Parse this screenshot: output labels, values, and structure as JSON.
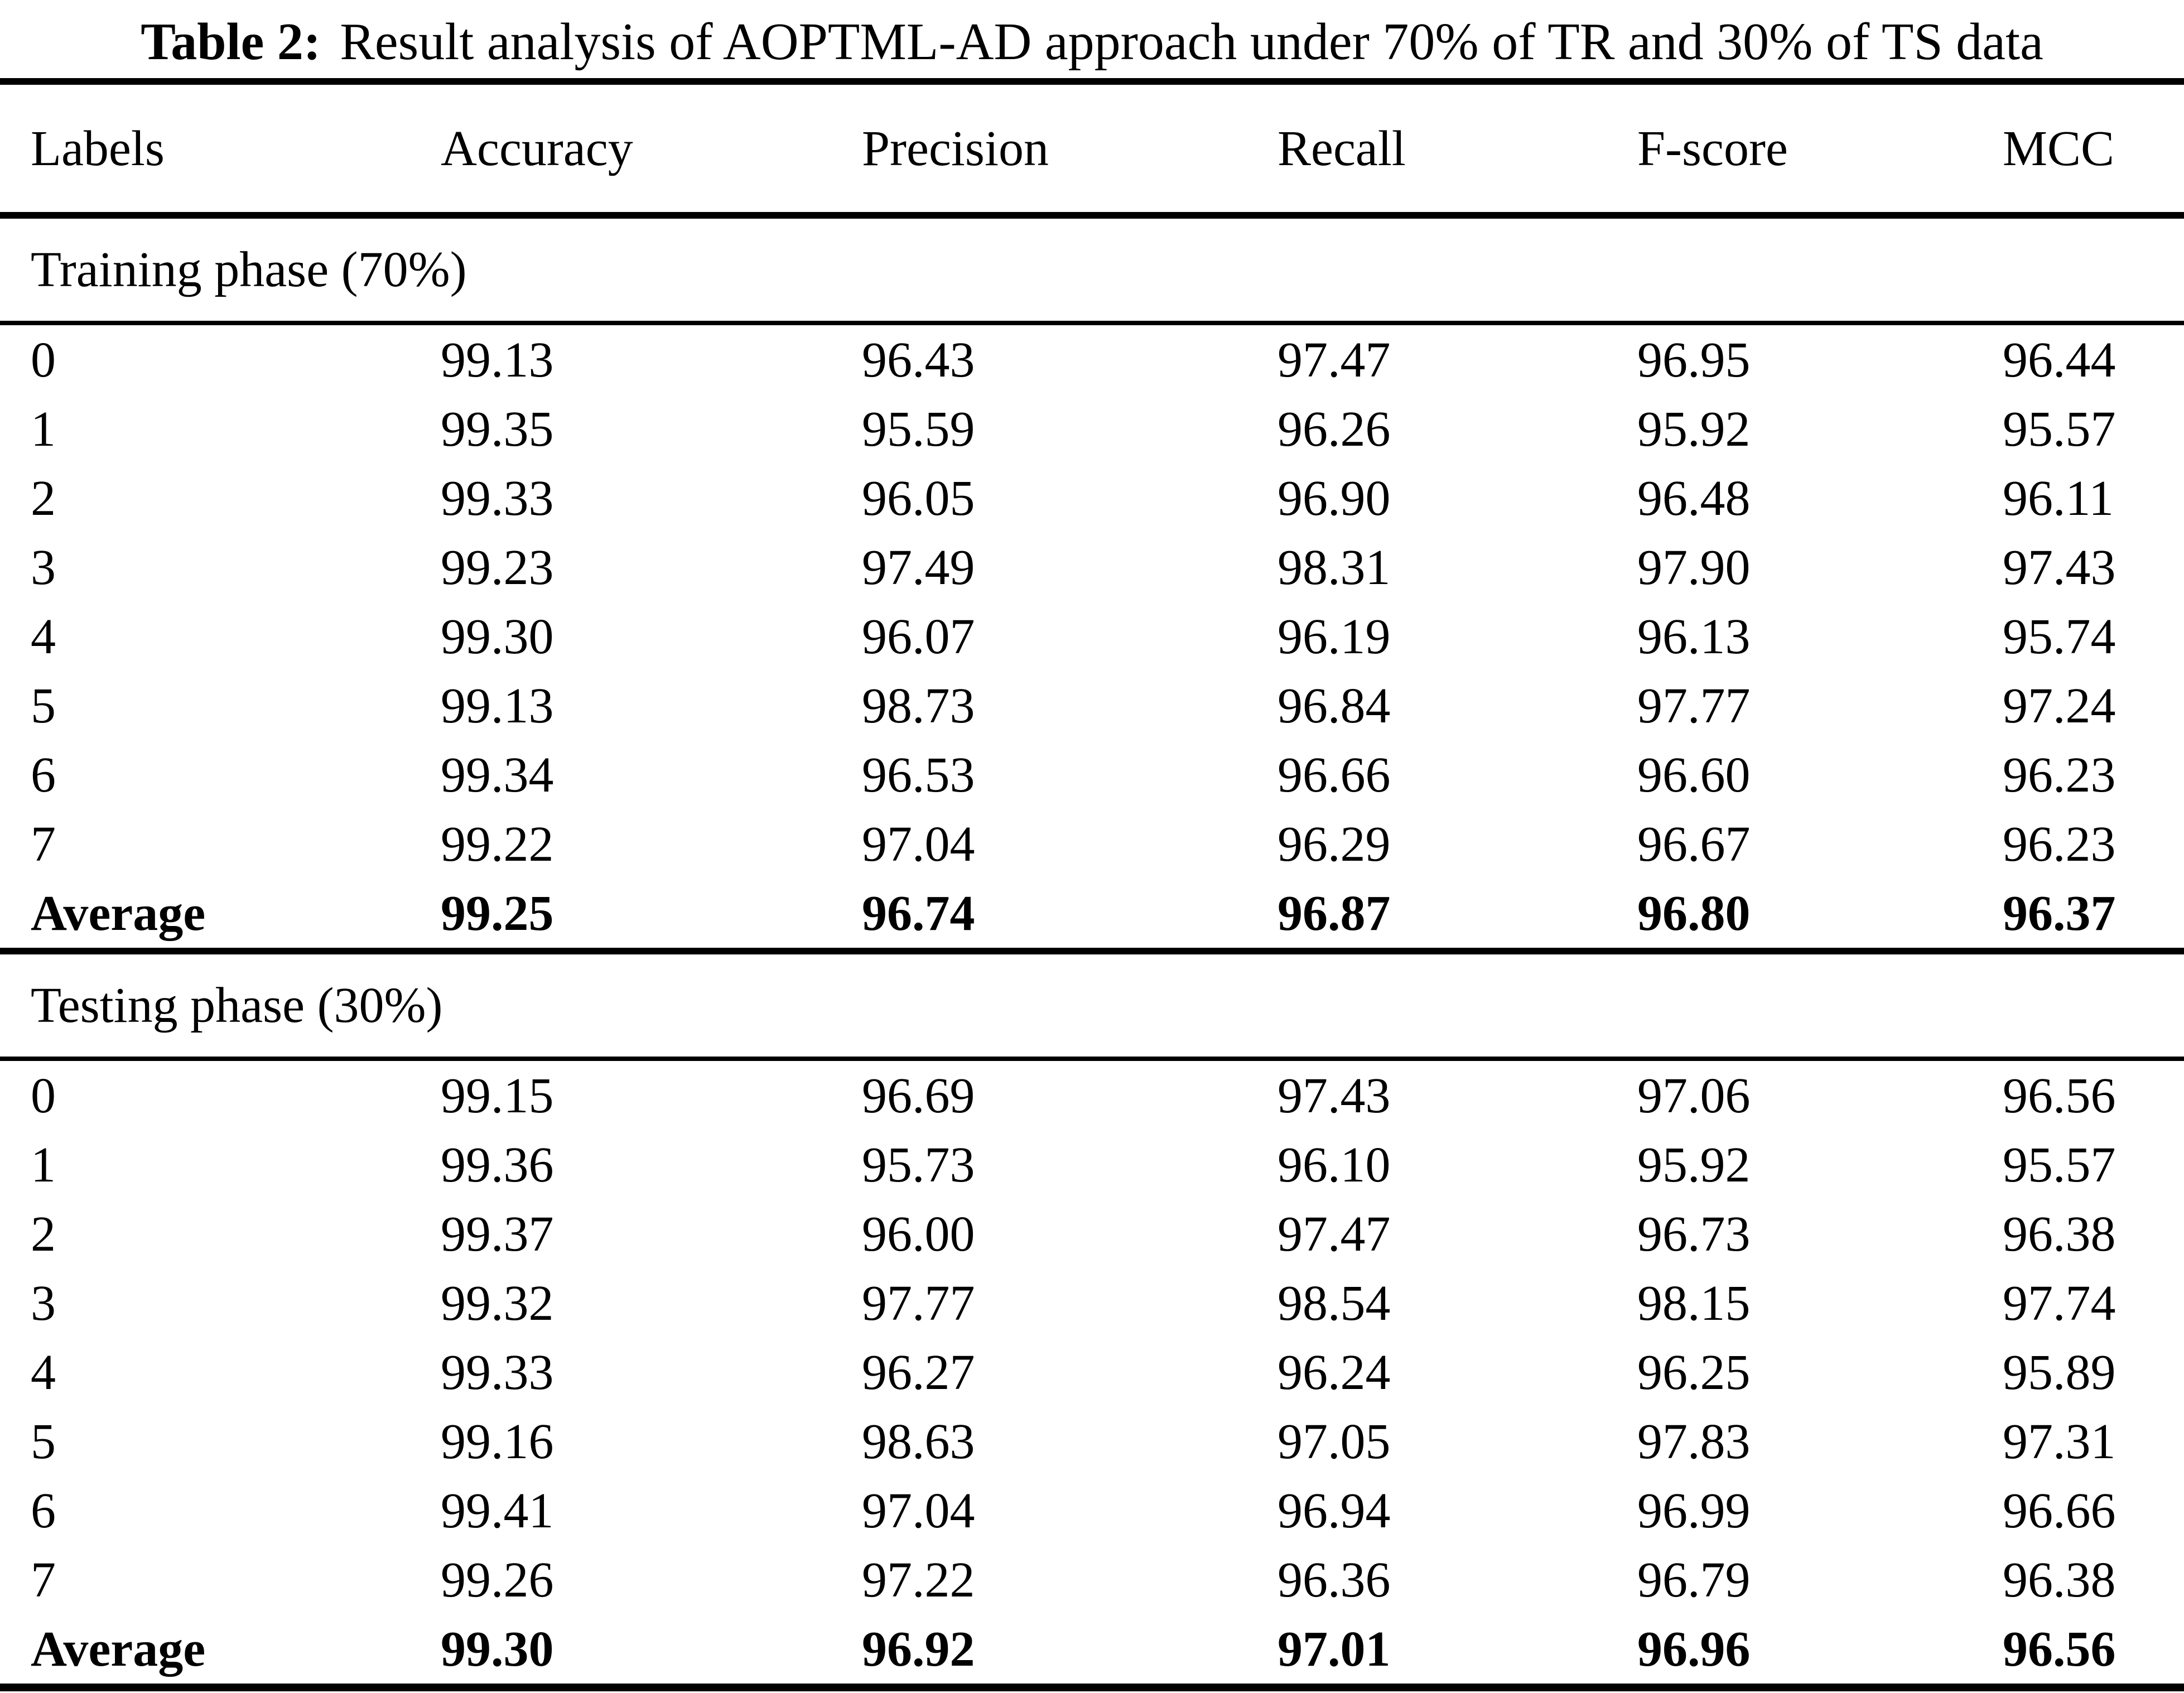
{
  "title": {
    "label": "Table 2:",
    "text": "Result analysis of AOPTML-AD approach under 70% of TR and 30% of TS data"
  },
  "columns": [
    "Labels",
    "Accuracy",
    "Precision",
    "Recall",
    "F-score",
    "MCC"
  ],
  "sections": [
    {
      "header": "Training phase (70%)",
      "rows": [
        [
          "0",
          "99.13",
          "96.43",
          "97.47",
          "96.95",
          "96.44"
        ],
        [
          "1",
          "99.35",
          "95.59",
          "96.26",
          "95.92",
          "95.57"
        ],
        [
          "2",
          "99.33",
          "96.05",
          "96.90",
          "96.48",
          "96.11"
        ],
        [
          "3",
          "99.23",
          "97.49",
          "98.31",
          "97.90",
          "97.43"
        ],
        [
          "4",
          "99.30",
          "96.07",
          "96.19",
          "96.13",
          "95.74"
        ],
        [
          "5",
          "99.13",
          "98.73",
          "96.84",
          "97.77",
          "97.24"
        ],
        [
          "6",
          "99.34",
          "96.53",
          "96.66",
          "96.60",
          "96.23"
        ],
        [
          "7",
          "99.22",
          "97.04",
          "96.29",
          "96.67",
          "96.23"
        ]
      ],
      "average": [
        "Average",
        "99.25",
        "96.74",
        "96.87",
        "96.80",
        "96.37"
      ]
    },
    {
      "header": "Testing phase (30%)",
      "rows": [
        [
          "0",
          "99.15",
          "96.69",
          "97.43",
          "97.06",
          "96.56"
        ],
        [
          "1",
          "99.36",
          "95.73",
          "96.10",
          "95.92",
          "95.57"
        ],
        [
          "2",
          "99.37",
          "96.00",
          "97.47",
          "96.73",
          "96.38"
        ],
        [
          "3",
          "99.32",
          "97.77",
          "98.54",
          "98.15",
          "97.74"
        ],
        [
          "4",
          "99.33",
          "96.27",
          "96.24",
          "96.25",
          "95.89"
        ],
        [
          "5",
          "99.16",
          "98.63",
          "97.05",
          "97.83",
          "97.31"
        ],
        [
          "6",
          "99.41",
          "97.04",
          "96.94",
          "96.99",
          "96.66"
        ],
        [
          "7",
          "99.26",
          "97.22",
          "96.36",
          "96.79",
          "96.38"
        ]
      ],
      "average": [
        "Average",
        "99.30",
        "96.92",
        "97.01",
        "96.96",
        "96.56"
      ]
    }
  ],
  "colors": {
    "text": "#000000",
    "background": "#ffffff",
    "rule": "#000000"
  }
}
